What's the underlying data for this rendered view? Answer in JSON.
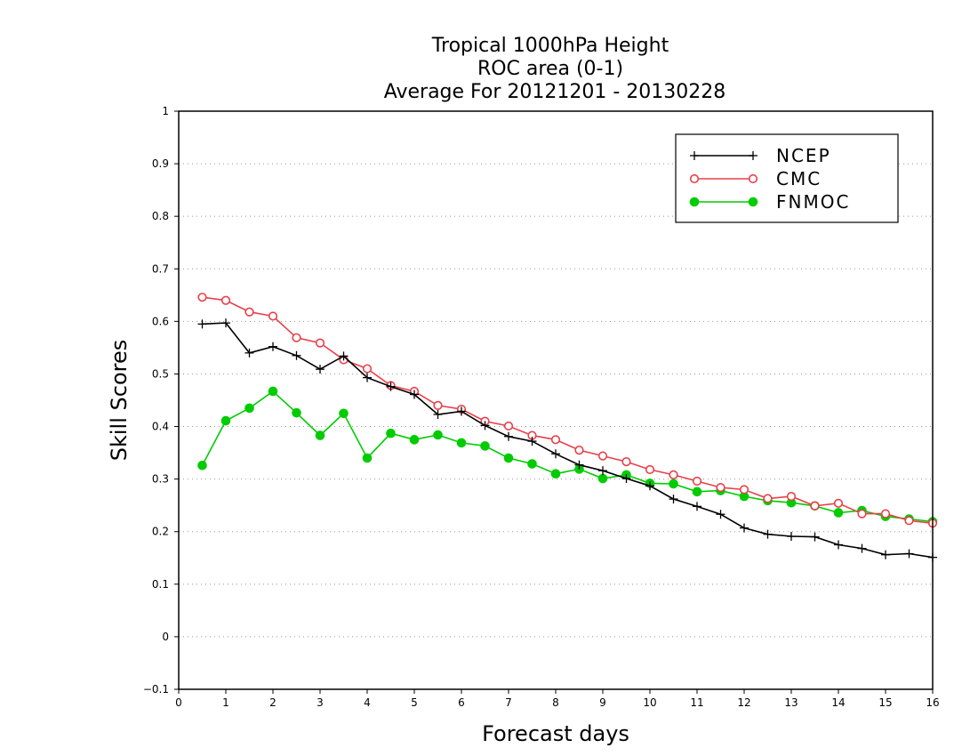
{
  "chart_data": {
    "type": "line",
    "title_lines": [
      "Tropical 1000hPa Height",
      "ROC area (0-1)",
      "Average For 20121201 - 20130228"
    ],
    "xlabel": "Forecast days",
    "ylabel": "Skill Scores",
    "xlim": [
      0,
      16
    ],
    "ylim": [
      -0.1,
      1
    ],
    "xticks": [
      "0",
      "1",
      "2",
      "3",
      "4",
      "5",
      "6",
      "7",
      "8",
      "9",
      "10",
      "11",
      "12",
      "13",
      "14",
      "15",
      "16"
    ],
    "yticks": [
      "−0.1",
      "0",
      "0.1",
      "0.2",
      "0.3",
      "0.4",
      "0.5",
      "0.6",
      "0.7",
      "0.8",
      "0.9",
      "1"
    ],
    "ytick_values": [
      -0.1,
      0,
      0.1,
      0.2,
      0.3,
      0.4,
      0.5,
      0.6,
      0.7,
      0.8,
      0.9,
      1
    ],
    "grid": "horizontal dotted",
    "legend_position": "top-right",
    "x": [
      0.5,
      1,
      1.5,
      2,
      2.5,
      3,
      3.5,
      4,
      4.5,
      5,
      5.5,
      6,
      6.5,
      7,
      7.5,
      8,
      8.5,
      9,
      9.5,
      10,
      10.5,
      11,
      11.5,
      12,
      12.5,
      13,
      13.5,
      14,
      14.5,
      15,
      15.5,
      16
    ],
    "series": [
      {
        "name": "NCEP",
        "color": "#000000",
        "marker": "plus",
        "values": [
          0.595,
          0.597,
          0.54,
          0.552,
          0.535,
          0.509,
          0.534,
          0.493,
          0.476,
          0.461,
          0.423,
          0.429,
          0.402,
          0.381,
          0.372,
          0.348,
          0.327,
          0.316,
          0.301,
          0.287,
          0.262,
          0.248,
          0.233,
          0.207,
          0.195,
          0.191,
          0.19,
          0.175,
          0.168,
          0.156,
          0.158,
          0.151
        ]
      },
      {
        "name": "CMC",
        "color": "#e8404a",
        "marker": "open-circle",
        "values": [
          0.646,
          0.64,
          0.618,
          0.61,
          0.569,
          0.559,
          0.527,
          0.51,
          0.478,
          0.467,
          0.44,
          0.433,
          0.41,
          0.401,
          0.383,
          0.375,
          0.355,
          0.344,
          0.333,
          0.318,
          0.308,
          0.296,
          0.284,
          0.28,
          0.263,
          0.267,
          0.249,
          0.254,
          0.234,
          0.234,
          0.221,
          0.216
        ]
      },
      {
        "name": "FNMOC",
        "color": "#00cc00",
        "marker": "filled-circle",
        "values": [
          0.326,
          0.411,
          0.435,
          0.467,
          0.426,
          0.383,
          0.425,
          0.34,
          0.387,
          0.375,
          0.384,
          0.369,
          0.363,
          0.34,
          0.329,
          0.31,
          0.319,
          0.301,
          0.308,
          0.292,
          0.291,
          0.276,
          0.278,
          0.267,
          0.259,
          0.255,
          0.249,
          0.236,
          0.24,
          0.229,
          0.224,
          0.219
        ]
      }
    ]
  }
}
